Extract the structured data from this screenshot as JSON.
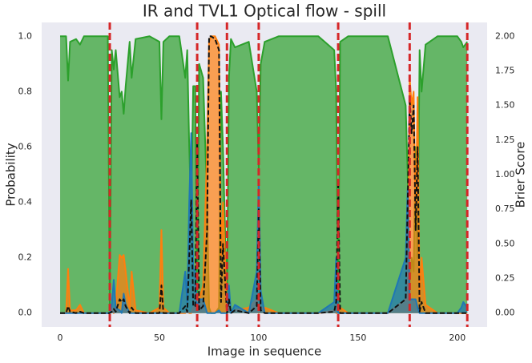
{
  "chart_data": {
    "type": "line",
    "title": "IR and TVL1 Optical flow - spill",
    "xlabel": "Image in sequence",
    "ylabel": "Probability",
    "y2label": "Brier Score",
    "x": [
      0,
      3,
      4,
      5,
      8,
      10,
      12,
      20,
      24,
      25,
      26,
      27,
      28,
      30,
      31,
      32,
      33,
      35,
      36,
      38,
      45,
      50,
      51,
      52,
      55,
      60,
      63,
      64,
      65,
      66,
      67,
      68,
      69,
      70,
      72,
      74,
      75,
      76,
      78,
      80,
      81,
      82,
      84,
      85,
      86,
      88,
      95,
      99,
      100,
      101,
      103,
      110,
      120,
      130,
      138,
      139,
      140,
      141,
      145,
      155,
      165,
      174,
      175,
      176,
      177,
      178,
      179,
      180,
      181,
      182,
      184,
      190,
      200,
      202,
      203,
      205
    ],
    "series": [
      {
        "color": "#2ca02c",
        "fill": true,
        "values": [
          1.0,
          1.0,
          0.84,
          0.98,
          0.99,
          0.97,
          1.0,
          1.0,
          1.0,
          0.02,
          0.95,
          0.88,
          0.95,
          0.78,
          0.8,
          0.72,
          0.82,
          0.98,
          0.85,
          0.99,
          1.0,
          0.98,
          0.7,
          0.98,
          1.0,
          1.0,
          0.85,
          0.95,
          0.6,
          0.35,
          0.82,
          0.82,
          0.05,
          0.9,
          0.85,
          0.4,
          0.02,
          0,
          0,
          0.02,
          0.8,
          0.6,
          0.02,
          0.85,
          0.99,
          0.96,
          0.98,
          0.8,
          0.52,
          0.9,
          0.98,
          1.0,
          1.0,
          1.0,
          0.95,
          0.8,
          0.02,
          0.98,
          1.0,
          1.0,
          1.0,
          0.75,
          0.5,
          0.1,
          0.2,
          0.15,
          0.6,
          0.2,
          0.95,
          0.8,
          0.97,
          1.0,
          1.0,
          0.98,
          0.96,
          0.98
        ]
      },
      {
        "color": "#ff7f0e",
        "fill": true,
        "values": [
          0,
          0,
          0.16,
          0.01,
          0.01,
          0.03,
          0,
          0,
          0,
          0,
          0.02,
          0,
          0.03,
          0.21,
          0.2,
          0.21,
          0.15,
          0.02,
          0.15,
          0.01,
          0,
          0.02,
          0.3,
          0.02,
          0,
          0,
          0,
          0.01,
          0,
          0,
          0.02,
          0.03,
          0.05,
          0.05,
          0.1,
          0.6,
          0.98,
          1.0,
          1.0,
          0.97,
          0.2,
          0.4,
          0,
          0.05,
          0,
          0.01,
          0.02,
          0.05,
          0,
          0.02,
          0.02,
          0,
          0,
          0,
          0.01,
          0,
          0,
          0.02,
          0,
          0,
          0,
          0.05,
          0.05,
          0.85,
          0.75,
          0.8,
          0.35,
          0.78,
          0.05,
          0.2,
          0.03,
          0,
          0,
          0,
          0,
          0
        ]
      },
      {
        "color": "#1f77b4",
        "fill": true,
        "values": [
          0,
          0,
          0,
          0,
          0,
          0,
          0,
          0,
          0,
          0,
          0.03,
          0.12,
          0.02,
          0.01,
          0,
          0.07,
          0.03,
          0,
          0,
          0,
          0,
          0,
          0,
          0,
          0,
          0,
          0.15,
          0.04,
          0.4,
          0.65,
          0.16,
          0.15,
          0.01,
          0.05,
          0.05,
          0,
          0,
          0,
          0,
          0.01,
          0,
          0,
          0,
          0.1,
          0,
          0.03,
          0,
          0.15,
          0.48,
          0.08,
          0,
          0,
          0,
          0,
          0.04,
          0.2,
          0,
          0,
          0,
          0,
          0,
          0.2,
          0.45,
          0.05,
          0.05,
          0.05,
          0.05,
          0.02,
          0,
          0,
          0,
          0,
          0,
          0.02,
          0.04,
          0.02
        ]
      },
      {
        "color": "#111111",
        "dash": true,
        "axis": "y2",
        "values": [
          0,
          0,
          0.05,
          0.01,
          0,
          0.01,
          0,
          0,
          0,
          0,
          0.01,
          0.03,
          0.01,
          0.1,
          0.08,
          0.1,
          0.05,
          0,
          0.04,
          0,
          0,
          0,
          0.2,
          0,
          0,
          0,
          0.05,
          0.01,
          0.4,
          0.82,
          0.05,
          0.05,
          1.25,
          0.02,
          0.05,
          0.6,
          2.0,
          2.0,
          1.98,
          1.9,
          0.08,
          0.5,
          0,
          0.1,
          0,
          0.02,
          0,
          0.05,
          0.75,
          0.02,
          0,
          0,
          0,
          0,
          0.01,
          0.08,
          0.95,
          0,
          0,
          0,
          0,
          0.1,
          0.8,
          1.55,
          1.3,
          1.5,
          0.6,
          1.2,
          0.01,
          0.08,
          0,
          0,
          0,
          0,
          0,
          0
        ]
      }
    ],
    "vlines": [
      25,
      69,
      84,
      100,
      140,
      176,
      205
    ],
    "vline_color": "#d62728",
    "xlim": [
      -9.3,
      215
    ],
    "xticks": [
      0,
      50,
      100,
      150,
      200
    ],
    "ylim": [
      -0.05,
      1.05
    ],
    "yticks": [
      {
        "value": 0,
        "label": "0.0"
      },
      0.2,
      0.4,
      0.6,
      0.8,
      {
        "value": 1,
        "label": "1.0"
      }
    ],
    "y2lim": [
      -0.1,
      2.1
    ],
    "y2ticks": [
      {
        "value": 0,
        "label": "0.00"
      },
      0.25,
      {
        "value": 0.5,
        "label": "0.50"
      },
      0.75,
      {
        "value": 1,
        "label": "1.00"
      },
      1.25,
      {
        "value": 1.5,
        "label": "1.50"
      },
      1.75,
      {
        "value": 2,
        "label": "2.00"
      }
    ],
    "background": "#eaeaf2"
  }
}
